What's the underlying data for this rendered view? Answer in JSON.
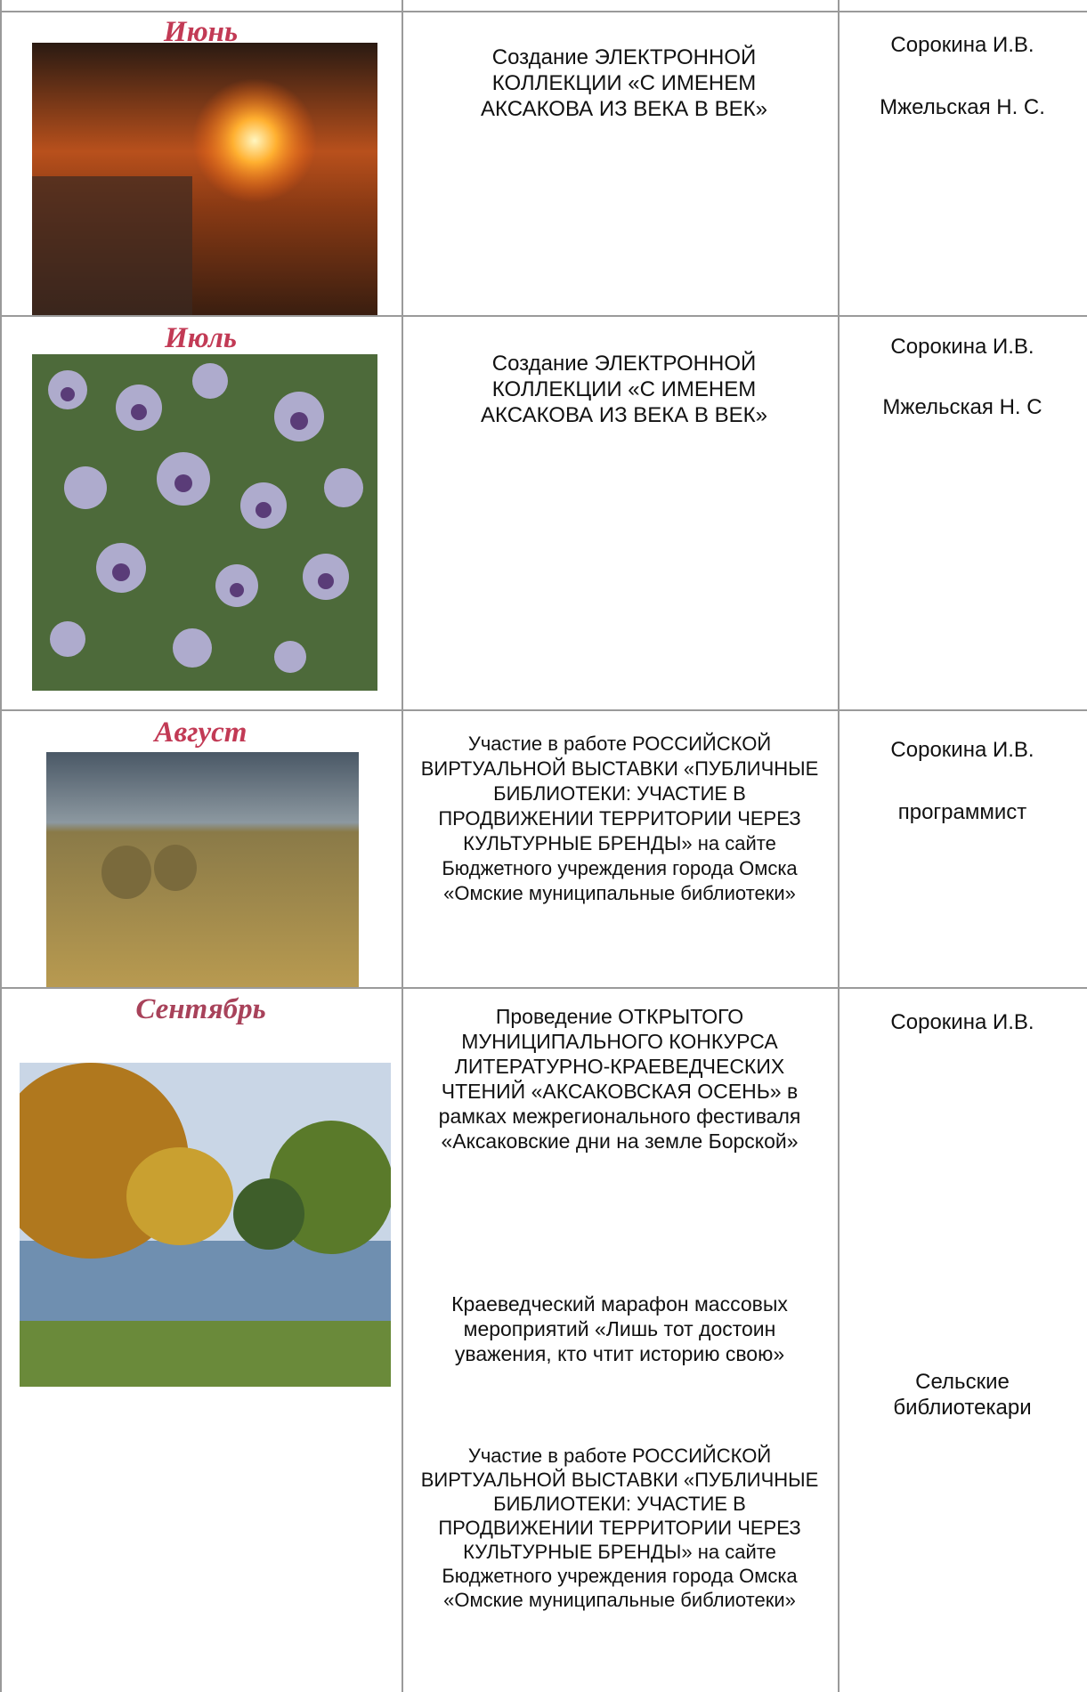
{
  "rows": [
    {
      "month": "Июнь",
      "activities": [
        "Создание  ЭЛЕКТРОННОЙ КОЛЛЕКЦИИ «С ИМЕНЕМ АКСАКОВА ИЗ ВЕКА В ВЕК»"
      ],
      "responsible": [
        "Сорокина И.В.",
        "Мжельская Н. С."
      ]
    },
    {
      "month": "Июль",
      "activities": [
        "Создание  ЭЛЕКТРОННОЙ КОЛЛЕКЦИИ «С ИМЕНЕМ АКСАКОВА ИЗ ВЕКА В ВЕК»"
      ],
      "responsible": [
        "Сорокина И.В.",
        "Мжельская Н. С"
      ]
    },
    {
      "month": "Август",
      "activities": [
        "Участие в работе РОССИЙСКОЙ ВИРТУАЛЬНОЙ ВЫСТАВКИ «ПУБЛИЧНЫЕ БИБЛИОТЕКИ: УЧАСТИЕ В ПРОДВИЖЕНИИ ТЕРРИТОРИИ ЧЕРЕЗ КУЛЬТУРНЫЕ БРЕНДЫ» на сайте Бюджетного учреждения города Омска «Омские муниципальные библиотеки»"
      ],
      "responsible": [
        "Сорокина И.В.",
        "программист"
      ]
    },
    {
      "month": "Сентябрь",
      "activities": [
        "Проведение ОТКРЫТОГО МУНИЦИПАЛЬНОГО КОНКУРСА ЛИТЕРАТУРНО-КРАЕВЕДЧЕСКИХ ЧТЕНИЙ  «АКСАКОВСКАЯ ОСЕНЬ» в рамках межрегионального фестиваля «Аксаковские дни на земле Борской»",
        "Краеведческий марафон массовых мероприятий «Лишь тот достоин уважения, кто чтит историю свою»",
        "Участие в работе РОССИЙСКОЙ ВИРТУАЛЬНОЙ ВЫСТАВКИ «ПУБЛИЧНЫЕ БИБЛИОТЕКИ: УЧАСТИЕ В ПРОДВИЖЕНИИ ТЕРРИТОРИИ ЧЕРЕЗ КУЛЬТУРНЫЕ БРЕНДЫ» на сайте Бюджетного учреждения города Омска «Омские муниципальные библиотеки»"
      ],
      "responsible": [
        "Сорокина И.В.",
        "Сельские библиотекари"
      ]
    }
  ]
}
